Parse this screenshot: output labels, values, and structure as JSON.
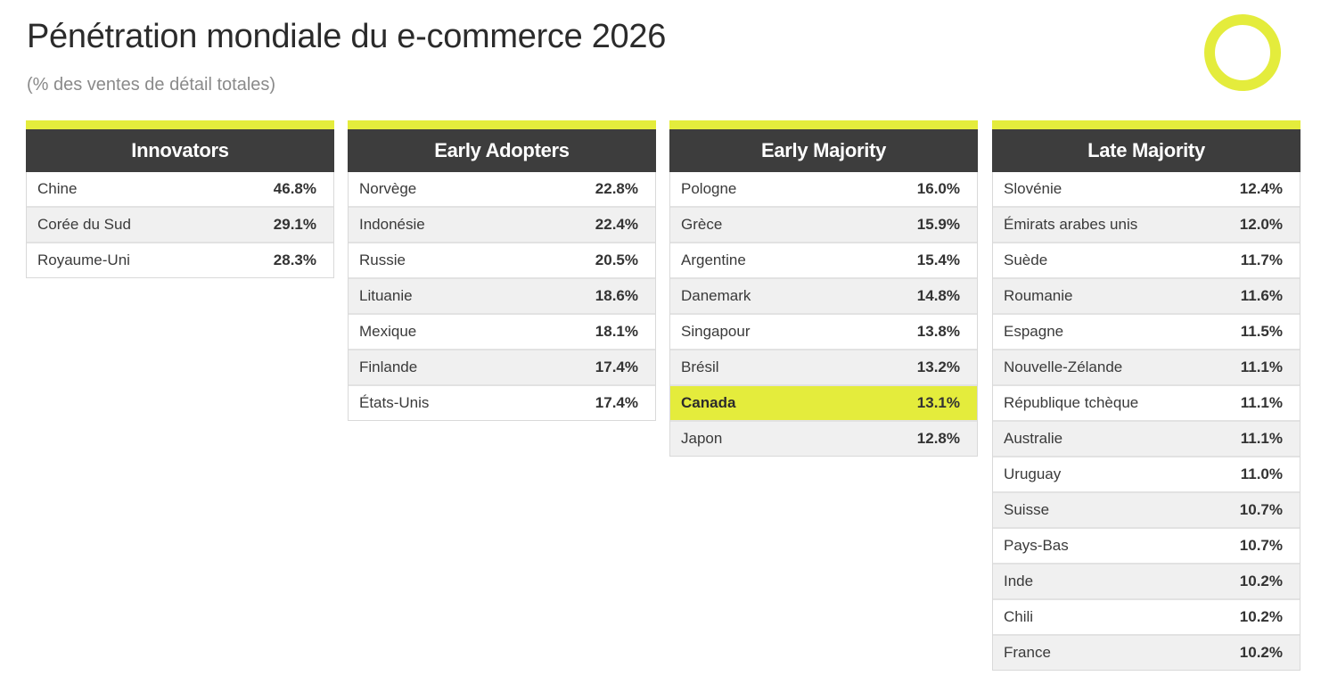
{
  "title": "Pénétration mondiale du e-commerce 2026",
  "subtitle": "(% des ventes de détail totales)",
  "accent_color": "#e4ec3c",
  "header_color": "#3d3d3d",
  "logo_icon": "ring-icon",
  "chart_data": {
    "type": "table",
    "title": "Pénétration mondiale du e-commerce 2026",
    "subtitle": "(% des ventes de détail totales)",
    "groups": [
      {
        "name": "Innovators",
        "rows": [
          {
            "country": "Chine",
            "value": "46.8%"
          },
          {
            "country": "Corée du Sud",
            "value": "29.1%"
          },
          {
            "country": "Royaume-Uni",
            "value": "28.3%"
          }
        ]
      },
      {
        "name": "Early Adopters",
        "rows": [
          {
            "country": "Norvège",
            "value": "22.8%"
          },
          {
            "country": "Indonésie",
            "value": "22.4%"
          },
          {
            "country": "Russie",
            "value": "20.5%"
          },
          {
            "country": "Lituanie",
            "value": "18.6%"
          },
          {
            "country": "Mexique",
            "value": "18.1%"
          },
          {
            "country": "Finlande",
            "value": "17.4%"
          },
          {
            "country": "États-Unis",
            "value": "17.4%"
          }
        ]
      },
      {
        "name": "Early Majority",
        "rows": [
          {
            "country": "Pologne",
            "value": "16.0%"
          },
          {
            "country": "Grèce",
            "value": "15.9%"
          },
          {
            "country": "Argentine",
            "value": "15.4%"
          },
          {
            "country": "Danemark",
            "value": "14.8%"
          },
          {
            "country": "Singapour",
            "value": "13.8%"
          },
          {
            "country": "Brésil",
            "value": "13.2%"
          },
          {
            "country": "Canada",
            "value": "13.1%",
            "highlight": true
          },
          {
            "country": "Japon",
            "value": "12.8%"
          }
        ]
      },
      {
        "name": "Late Majority",
        "rows": [
          {
            "country": "Slovénie",
            "value": "12.4%"
          },
          {
            "country": "Émirats arabes unis",
            "value": "12.0%"
          },
          {
            "country": "Suède",
            "value": "11.7%"
          },
          {
            "country": "Roumanie",
            "value": "11.6%"
          },
          {
            "country": "Espagne",
            "value": "11.5%"
          },
          {
            "country": "Nouvelle-Zélande",
            "value": "11.1%"
          },
          {
            "country": "République tchèque",
            "value": "11.1%"
          },
          {
            "country": "Australie",
            "value": "11.1%"
          },
          {
            "country": "Uruguay",
            "value": "11.0%"
          },
          {
            "country": "Suisse",
            "value": "10.7%"
          },
          {
            "country": "Pays-Bas",
            "value": "10.7%"
          },
          {
            "country": "Inde",
            "value": "10.2%"
          },
          {
            "country": "Chili",
            "value": "10.2%"
          },
          {
            "country": "France",
            "value": "10.2%"
          }
        ]
      }
    ]
  }
}
